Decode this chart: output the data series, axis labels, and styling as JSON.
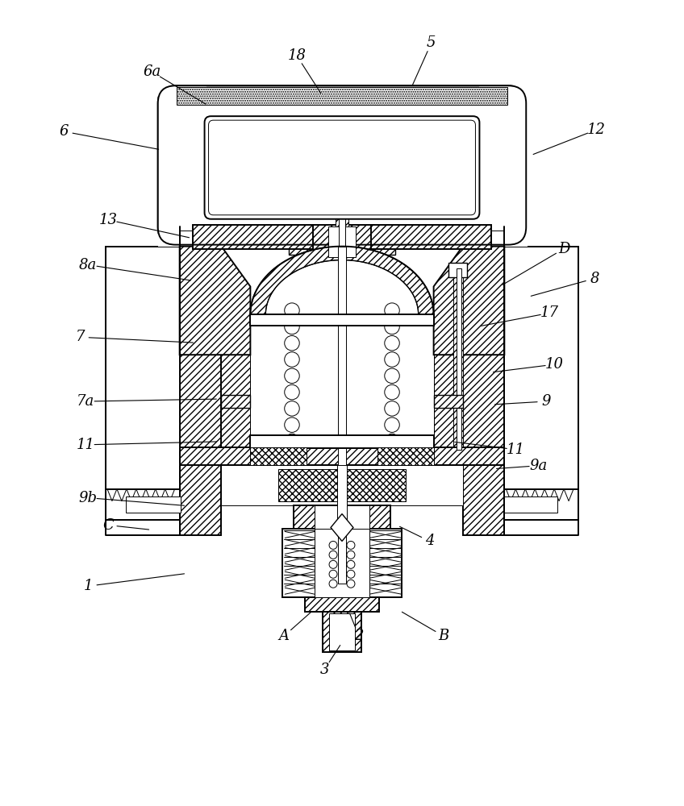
{
  "bg_color": "#ffffff",
  "lw_main": 1.4,
  "lw_med": 1.0,
  "lw_thin": 0.7,
  "figsize": [
    8.48,
    10.0
  ],
  "dpi": 100,
  "labels": [
    [
      "5",
      535,
      52,
      510,
      108
    ],
    [
      "18",
      368,
      68,
      400,
      118
    ],
    [
      "6a",
      188,
      88,
      258,
      130
    ],
    [
      "6",
      78,
      162,
      200,
      185
    ],
    [
      "12",
      740,
      160,
      658,
      192
    ],
    [
      "13",
      133,
      272,
      238,
      295
    ],
    [
      "8a",
      108,
      328,
      240,
      348
    ],
    [
      "D",
      700,
      308,
      620,
      355
    ],
    [
      "8",
      738,
      345,
      655,
      368
    ],
    [
      "7",
      98,
      418,
      243,
      425
    ],
    [
      "17",
      682,
      388,
      592,
      405
    ],
    [
      "10",
      688,
      452,
      608,
      462
    ],
    [
      "7a",
      105,
      498,
      272,
      495
    ],
    [
      "9",
      678,
      498,
      610,
      502
    ],
    [
      "11",
      105,
      552,
      272,
      548
    ],
    [
      "11",
      640,
      558,
      560,
      548
    ],
    [
      "9a",
      668,
      578,
      612,
      582
    ],
    [
      "9b",
      108,
      618,
      232,
      628
    ],
    [
      "C",
      133,
      652,
      188,
      658
    ],
    [
      "4",
      533,
      672,
      492,
      652
    ],
    [
      "1",
      108,
      728,
      232,
      712
    ],
    [
      "A",
      352,
      790,
      388,
      758
    ],
    [
      "2",
      445,
      790,
      432,
      758
    ],
    [
      "B",
      550,
      790,
      495,
      758
    ],
    [
      "3",
      402,
      832,
      424,
      798
    ]
  ]
}
